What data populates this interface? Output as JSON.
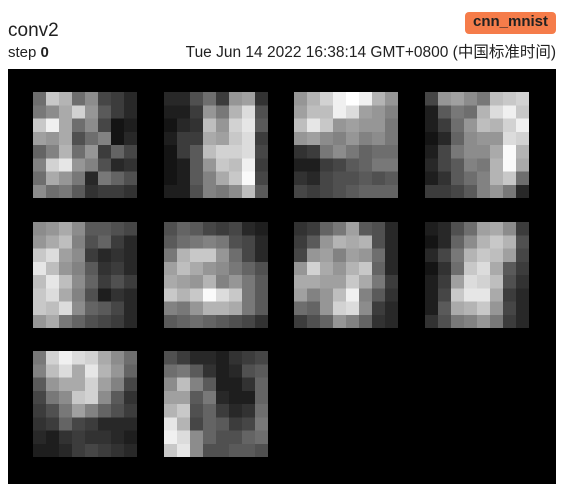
{
  "header": {
    "tag": "conv2",
    "run": "cnn_mnist",
    "step_label": "step",
    "step_value": "0",
    "timestamp": "Tue Jun 14 2022 16:38:14 GMT+0800 (中国标准时间)"
  },
  "image": {
    "background": "#000000",
    "filter_count": 10,
    "columns": 4,
    "kernel_size": 8,
    "filters": [
      [
        [
          110,
          200,
          180,
          110,
          140,
          70,
          60,
          40
        ],
        [
          120,
          140,
          170,
          210,
          150,
          90,
          60,
          40
        ],
        [
          200,
          240,
          170,
          110,
          140,
          70,
          20,
          30
        ],
        [
          160,
          150,
          170,
          80,
          110,
          130,
          20,
          40
        ],
        [
          100,
          130,
          180,
          110,
          150,
          60,
          100,
          70
        ],
        [
          130,
          210,
          230,
          150,
          130,
          80,
          40,
          50
        ],
        [
          110,
          170,
          150,
          120,
          40,
          120,
          100,
          80
        ],
        [
          140,
          110,
          120,
          90,
          50,
          60,
          60,
          50
        ]
      ],
      [
        [
          40,
          40,
          80,
          110,
          60,
          150,
          160,
          50
        ],
        [
          30,
          30,
          60,
          150,
          120,
          180,
          220,
          80
        ],
        [
          20,
          40,
          50,
          190,
          150,
          210,
          230,
          90
        ],
        [
          30,
          60,
          60,
          170,
          160,
          200,
          220,
          60
        ],
        [
          20,
          60,
          90,
          190,
          210,
          210,
          220,
          70
        ],
        [
          20,
          30,
          90,
          150,
          200,
          190,
          240,
          60
        ],
        [
          20,
          30,
          90,
          130,
          170,
          200,
          250,
          70
        ],
        [
          30,
          30,
          80,
          130,
          120,
          140,
          190,
          90
        ]
      ],
      [
        [
          150,
          180,
          210,
          240,
          255,
          240,
          180,
          150
        ],
        [
          160,
          190,
          190,
          240,
          220,
          160,
          150,
          130
        ],
        [
          190,
          230,
          200,
          150,
          160,
          150,
          150,
          120
        ],
        [
          150,
          160,
          140,
          130,
          150,
          130,
          140,
          120
        ],
        [
          50,
          60,
          120,
          140,
          120,
          100,
          110,
          110
        ],
        [
          30,
          30,
          60,
          70,
          90,
          100,
          120,
          120
        ],
        [
          50,
          40,
          70,
          80,
          80,
          90,
          80,
          90
        ],
        [
          70,
          60,
          70,
          80,
          90,
          100,
          100,
          100
        ]
      ],
      [
        [
          70,
          150,
          160,
          140,
          120,
          190,
          200,
          210
        ],
        [
          30,
          90,
          120,
          110,
          180,
          220,
          240,
          200
        ],
        [
          30,
          60,
          110,
          150,
          190,
          180,
          210,
          240
        ],
        [
          20,
          40,
          100,
          140,
          150,
          150,
          220,
          210
        ],
        [
          30,
          70,
          120,
          140,
          140,
          170,
          250,
          180
        ],
        [
          40,
          70,
          90,
          130,
          120,
          180,
          250,
          170
        ],
        [
          30,
          50,
          90,
          110,
          130,
          180,
          200,
          110
        ],
        [
          60,
          60,
          70,
          90,
          130,
          150,
          120,
          40
        ]
      ],
      [
        [
          140,
          150,
          170,
          140,
          90,
          90,
          80,
          70
        ],
        [
          150,
          170,
          190,
          130,
          80,
          100,
          60,
          40
        ],
        [
          200,
          220,
          160,
          140,
          60,
          40,
          50,
          40
        ],
        [
          230,
          190,
          150,
          130,
          90,
          50,
          60,
          40
        ],
        [
          190,
          230,
          190,
          140,
          100,
          60,
          80,
          60
        ],
        [
          200,
          220,
          170,
          130,
          80,
          30,
          50,
          40
        ],
        [
          200,
          190,
          220,
          140,
          100,
          90,
          70,
          40
        ],
        [
          150,
          170,
          120,
          100,
          80,
          70,
          60,
          40
        ]
      ],
      [
        [
          80,
          100,
          90,
          70,
          60,
          70,
          40,
          30
        ],
        [
          90,
          110,
          120,
          130,
          120,
          80,
          70,
          40
        ],
        [
          120,
          180,
          200,
          200,
          150,
          110,
          70,
          40
        ],
        [
          160,
          190,
          170,
          150,
          140,
          120,
          100,
          80
        ],
        [
          170,
          160,
          150,
          180,
          130,
          150,
          120,
          90
        ],
        [
          200,
          180,
          200,
          250,
          220,
          200,
          120,
          90
        ],
        [
          130,
          120,
          150,
          180,
          180,
          170,
          120,
          90
        ],
        [
          90,
          100,
          110,
          100,
          90,
          80,
          70,
          50
        ]
      ],
      [
        [
          50,
          60,
          100,
          120,
          160,
          90,
          80,
          40
        ],
        [
          60,
          90,
          150,
          180,
          170,
          180,
          80,
          40
        ],
        [
          70,
          150,
          160,
          130,
          160,
          150,
          110,
          40
        ],
        [
          150,
          210,
          170,
          150,
          180,
          200,
          100,
          40
        ],
        [
          170,
          170,
          160,
          160,
          200,
          170,
          120,
          60
        ],
        [
          160,
          130,
          150,
          190,
          240,
          130,
          90,
          50
        ],
        [
          110,
          100,
          150,
          210,
          220,
          140,
          60,
          40
        ],
        [
          60,
          80,
          100,
          150,
          130,
          100,
          50,
          40
        ]
      ],
      [
        [
          30,
          40,
          80,
          110,
          160,
          170,
          140,
          60
        ],
        [
          20,
          40,
          100,
          140,
          180,
          200,
          180,
          80
        ],
        [
          40,
          70,
          120,
          180,
          200,
          190,
          160,
          70
        ],
        [
          20,
          50,
          110,
          200,
          220,
          170,
          90,
          60
        ],
        [
          30,
          60,
          160,
          220,
          210,
          190,
          80,
          50
        ],
        [
          30,
          70,
          200,
          230,
          230,
          170,
          60,
          40
        ],
        [
          30,
          90,
          170,
          180,
          200,
          150,
          70,
          40
        ],
        [
          50,
          80,
          120,
          130,
          150,
          120,
          60,
          40
        ]
      ],
      [
        [
          120,
          210,
          240,
          220,
          210,
          170,
          140,
          110
        ],
        [
          130,
          190,
          220,
          170,
          230,
          180,
          150,
          100
        ],
        [
          90,
          150,
          170,
          170,
          210,
          160,
          130,
          70
        ],
        [
          70,
          120,
          140,
          200,
          210,
          140,
          90,
          50
        ],
        [
          60,
          80,
          120,
          160,
          130,
          100,
          80,
          60
        ],
        [
          50,
          60,
          100,
          70,
          60,
          40,
          40,
          40
        ],
        [
          40,
          30,
          50,
          60,
          50,
          50,
          40,
          30
        ],
        [
          30,
          30,
          40,
          60,
          70,
          60,
          50,
          40
        ]
      ],
      [
        [
          80,
          60,
          40,
          40,
          30,
          50,
          60,
          70
        ],
        [
          110,
          120,
          90,
          50,
          30,
          40,
          80,
          90
        ],
        [
          140,
          190,
          130,
          90,
          30,
          30,
          50,
          100
        ],
        [
          160,
          160,
          90,
          120,
          40,
          30,
          30,
          100
        ],
        [
          180,
          200,
          80,
          100,
          60,
          40,
          50,
          110
        ],
        [
          230,
          180,
          70,
          100,
          90,
          60,
          70,
          120
        ],
        [
          240,
          220,
          140,
          100,
          80,
          80,
          100,
          110
        ],
        [
          200,
          230,
          140,
          80,
          80,
          90,
          90,
          80
        ]
      ]
    ]
  }
}
